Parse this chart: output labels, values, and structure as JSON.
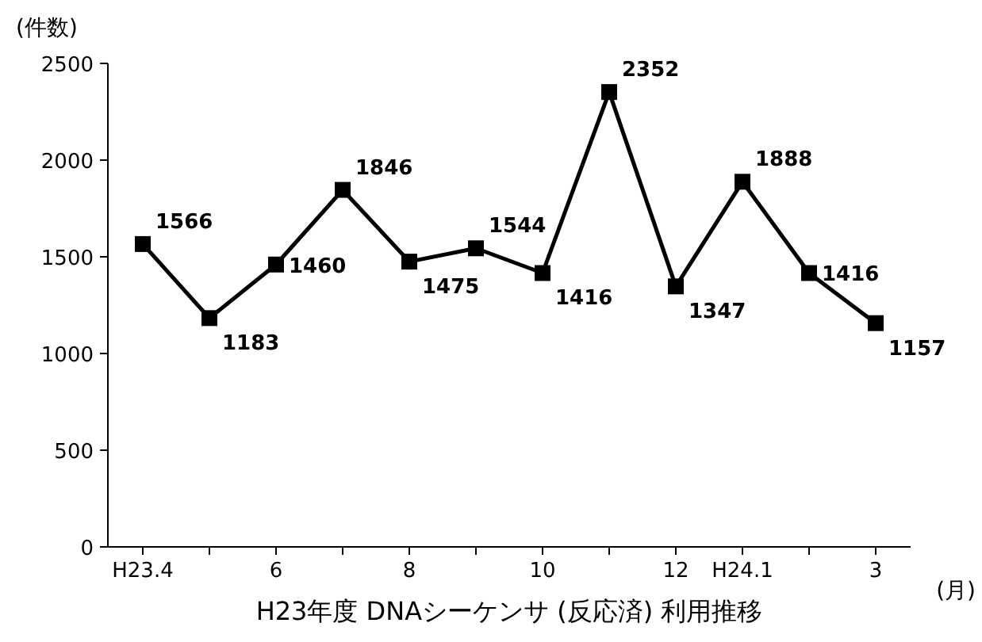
{
  "chart_data": {
    "type": "line",
    "title": "H23年度 DNAシーケンサ (反応済) 利用推移",
    "ylabel": "(件数)",
    "xlabel": "(月)",
    "categories": [
      "H23.4",
      null,
      "6",
      null,
      "8",
      null,
      "10",
      null,
      "12",
      "H24.1",
      null,
      "3"
    ],
    "series": [
      {
        "color": "#000000",
        "values": [
          1566,
          1183,
          1460,
          1846,
          1475,
          1544,
          1416,
          2352,
          1347,
          1888,
          1416,
          1157
        ]
      }
    ],
    "ylim": [
      0,
      2500
    ],
    "yticks": [
      0,
      500,
      1000,
      1500,
      2000,
      2500
    ],
    "data_labels": true,
    "marker": "square",
    "line_style": "solid",
    "grid": false
  }
}
